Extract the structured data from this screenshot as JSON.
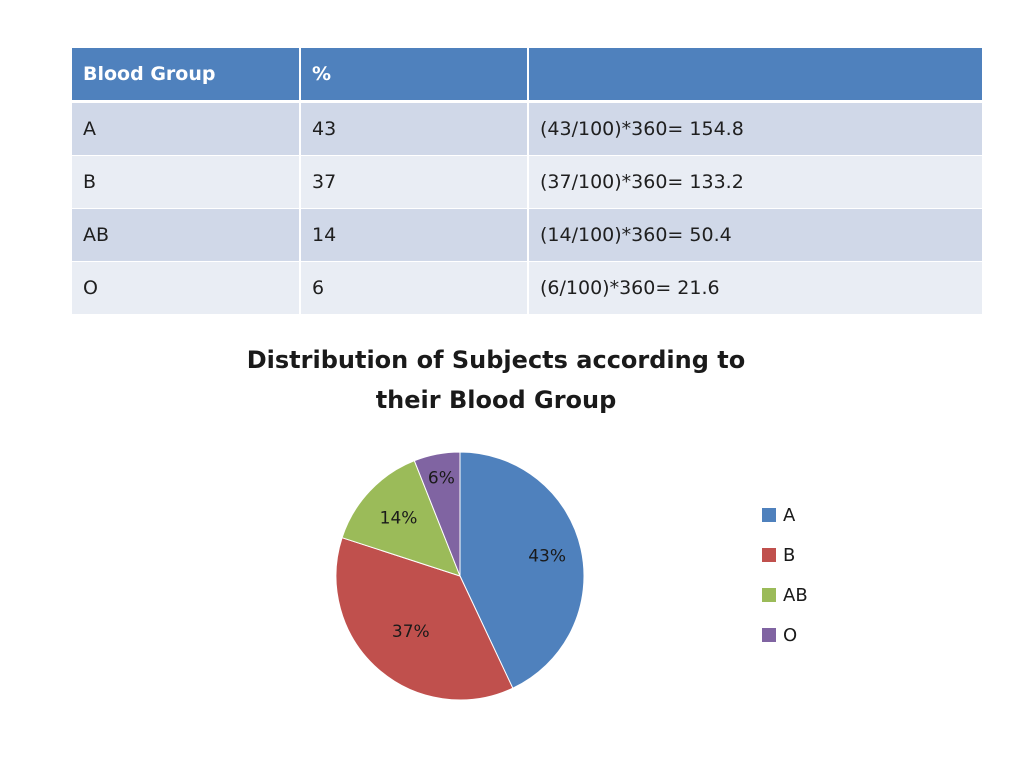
{
  "table": {
    "headers": [
      "Blood Group",
      "%",
      ""
    ],
    "rows": [
      {
        "group": "A",
        "percent": "43",
        "calc": "(43/100)*360= 154.8"
      },
      {
        "group": "B",
        "percent": "37",
        "calc": "(37/100)*360= 133.2"
      },
      {
        "group": "AB",
        "percent": "14",
        "calc": "(14/100)*360= 50.4"
      },
      {
        "group": "O",
        "percent": "6",
        "calc": "(6/100)*360= 21.6"
      }
    ]
  },
  "chart_data": {
    "type": "pie",
    "title_line1": "Distribution of Subjects according to",
    "title_line2": "their Blood Group",
    "categories": [
      "A",
      "B",
      "AB",
      "O"
    ],
    "values": [
      43,
      37,
      14,
      6
    ],
    "slice_labels": [
      "43%",
      "37%",
      "14%",
      "6%"
    ],
    "colors": [
      "#4f81bd",
      "#c0504d",
      "#9bbb59",
      "#8064a2"
    ],
    "start_angle_deg": 0,
    "direction": "clockwise",
    "legend_position": "right"
  }
}
